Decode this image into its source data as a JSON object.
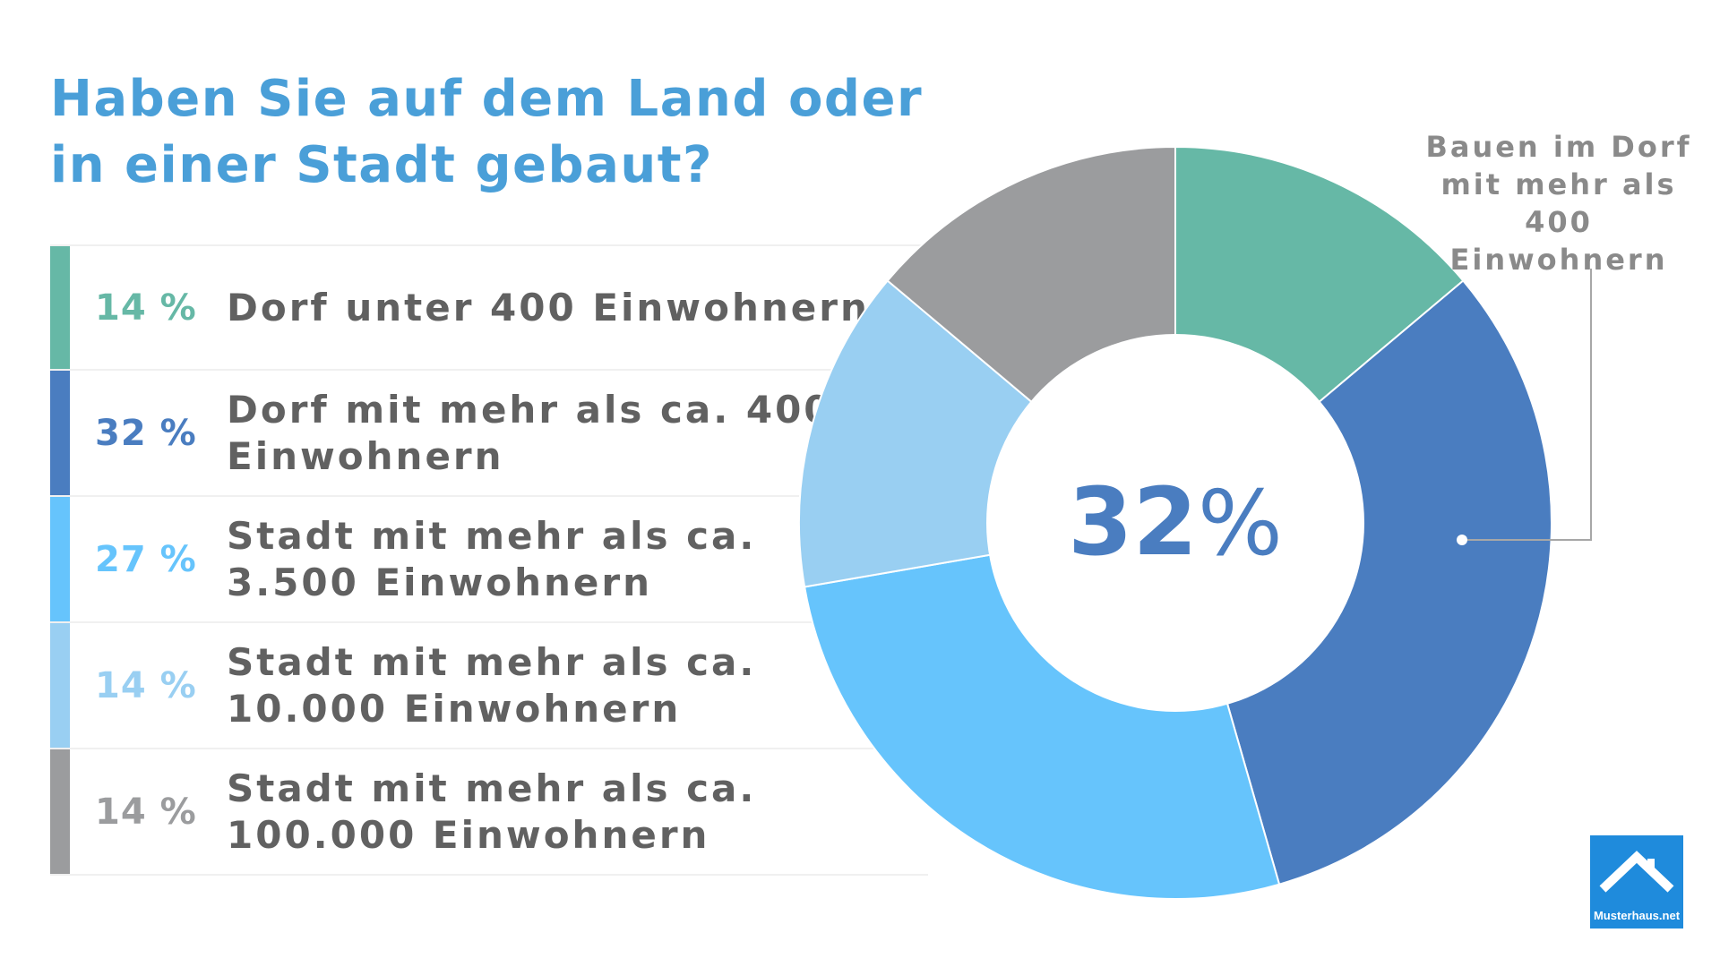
{
  "chart_data": {
    "type": "pie",
    "variant": "donut",
    "title": "Haben Sie auf dem Land oder in einer Stadt gebaut?",
    "categories": [
      "Dorf unter 400 Einwohnern",
      "Dorf mit mehr als ca. 400 Einwohnern",
      "Stadt mit mehr als ca. 3.500 Einwohnern",
      "Stadt mit mehr als ca. 10.000 Einwohnern",
      "Stadt mit mehr als ca. 100.000 Einwohnern"
    ],
    "values": [
      14,
      32,
      27,
      14,
      14
    ],
    "value_labels": [
      "14 %",
      "32 %",
      "27 %",
      "14 %",
      "14 %"
    ],
    "colors": [
      "#66b8a6",
      "#4a7dc0",
      "#66c4fc",
      "#99cff2",
      "#9b9c9e"
    ],
    "highlight_index": 1,
    "center_value": "32",
    "center_unit": "%",
    "callout": "Bauen im Dorf mit mehr als 400 Einwohnern",
    "legend": "left"
  },
  "branding": {
    "logo_text": "Musterhaus.net",
    "logo_color": "#1f8bdc"
  }
}
